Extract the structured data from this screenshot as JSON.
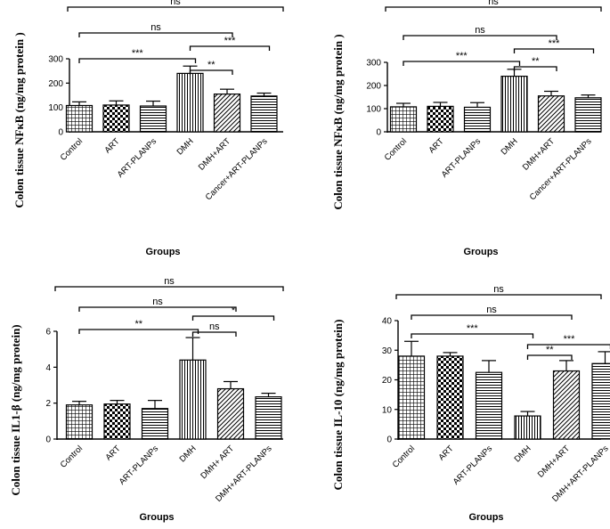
{
  "chart_data": [
    {
      "type": "bar",
      "title": "",
      "xlabel": "Groups",
      "ylabel": "Colon tissue NFκB  (ng/mg protein )",
      "ylim": [
        0,
        300
      ],
      "yticks": [
        0,
        100,
        200,
        300
      ],
      "categories": [
        "Control",
        "ART",
        "ART-PLANPs",
        "DMH",
        "DMH+ART",
        "Cancer+ART-PLANPs"
      ],
      "values": [
        108,
        110,
        106,
        240,
        155,
        147
      ],
      "errors": [
        15,
        17,
        20,
        30,
        20,
        12
      ],
      "patterns": [
        "grid",
        "check",
        "hlines",
        "vlines",
        "diag",
        "hlines"
      ],
      "comparisons": [
        {
          "from": 0,
          "to": 5,
          "label": "ns"
        },
        {
          "from": 0,
          "to": 4,
          "label": "ns"
        },
        {
          "from": 3,
          "to": 5,
          "label": "***"
        },
        {
          "from": 0,
          "to": 3,
          "label": "***"
        },
        {
          "from": 3,
          "to": 4,
          "label": "**"
        }
      ]
    },
    {
      "type": "bar",
      "title": "",
      "xlabel": "Groups",
      "ylabel": "Colon tissue NFκB  (ng/mg protein )",
      "ylim": [
        0,
        300
      ],
      "yticks": [
        0,
        100,
        200,
        300
      ],
      "categories": [
        "Control",
        "ART",
        "ART-PLANPs",
        "DMH",
        "DMH+ART",
        "Cancer+ART-PLANPs"
      ],
      "values": [
        108,
        110,
        106,
        240,
        155,
        147
      ],
      "errors": [
        15,
        17,
        20,
        30,
        20,
        12
      ],
      "patterns": [
        "grid",
        "check",
        "hlines",
        "vlines",
        "diag",
        "hlines"
      ],
      "comparisons": [
        {
          "from": 0,
          "to": 5,
          "label": "ns"
        },
        {
          "from": 0,
          "to": 4,
          "label": "ns"
        },
        {
          "from": 3,
          "to": 5,
          "label": "***"
        },
        {
          "from": 0,
          "to": 3,
          "label": "***"
        },
        {
          "from": 3,
          "to": 4,
          "label": "**"
        }
      ]
    },
    {
      "type": "bar",
      "title": "",
      "xlabel": "Groups",
      "ylabel": "Colon tissue IL1-β  (ng/mg protein)",
      "ylim": [
        0,
        6
      ],
      "yticks": [
        0,
        2,
        4,
        6
      ],
      "categories": [
        "Control",
        "ART",
        "ART-PLANPs",
        "DMH",
        "DMH+ ART",
        "DMH+ART-PLANPs"
      ],
      "values": [
        1.9,
        1.95,
        1.7,
        4.4,
        2.8,
        2.35
      ],
      "errors": [
        0.2,
        0.2,
        0.45,
        1.25,
        0.4,
        0.2
      ],
      "patterns": [
        "grid",
        "check",
        "hlines",
        "vlines",
        "diag",
        "hlines"
      ],
      "comparisons": [
        {
          "from": 0,
          "to": 5,
          "label": "ns"
        },
        {
          "from": 0,
          "to": 4,
          "label": "ns"
        },
        {
          "from": 3,
          "to": 5,
          "label": "*"
        },
        {
          "from": 3,
          "to": 4,
          "label": "ns"
        },
        {
          "from": 0,
          "to": 3,
          "label": "**"
        }
      ]
    },
    {
      "type": "bar",
      "title": "",
      "xlabel": "Groups",
      "ylabel": "Colon tissue IL-10  (ng/mg protein)",
      "ylim": [
        0,
        40
      ],
      "yticks": [
        0,
        10,
        20,
        30,
        40
      ],
      "categories": [
        "Control",
        "ART",
        "ART-PLANPs",
        "DMH",
        "DMH+ART",
        "DMH+ART-PLANPs"
      ],
      "values": [
        28,
        28,
        22.5,
        7.8,
        23,
        25.5
      ],
      "errors": [
        5,
        1.2,
        4,
        1.5,
        3.5,
        4
      ],
      "patterns": [
        "grid",
        "check",
        "hlines",
        "vlines",
        "diag",
        "hlines"
      ],
      "comparisons": [
        {
          "from": 0,
          "to": 5,
          "label": "ns"
        },
        {
          "from": 0,
          "to": 4,
          "label": "ns"
        },
        {
          "from": 0,
          "to": 3,
          "label": "***"
        },
        {
          "from": 3,
          "to": 5,
          "label": "***"
        },
        {
          "from": 3,
          "to": 4,
          "label": "**"
        }
      ]
    }
  ]
}
